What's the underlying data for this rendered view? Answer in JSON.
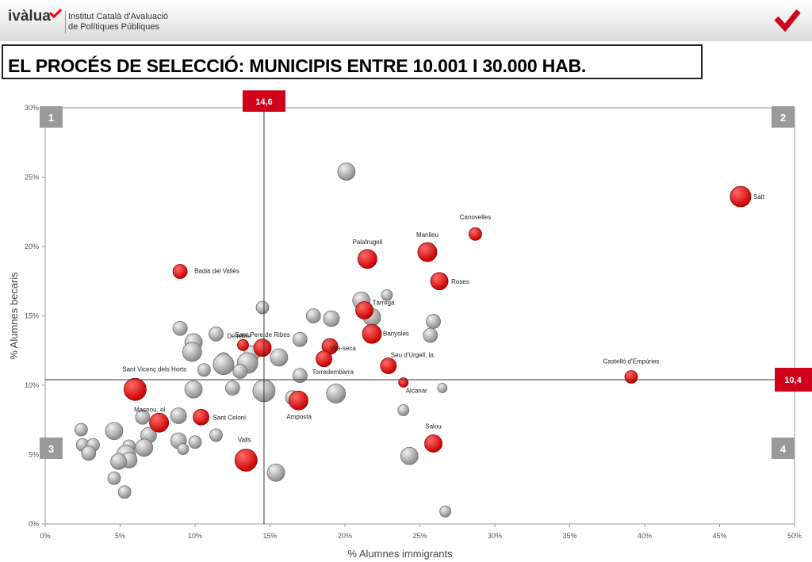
{
  "header": {
    "logo_word": "ivàlua",
    "org_line1": "Institut Català d'Avaluació",
    "org_line2": "de Polítiques Públiques"
  },
  "slide_title": "EL PROCÉS DE SELECCIÓ: MUNICIPIS ENTRE 10.001 I 30.000 HAB.",
  "colors": {
    "selected": "#e8000f",
    "other": "#a6a6a6",
    "accent": "#d0021b"
  },
  "chart_data": {
    "type": "scatter",
    "xlabel": "% Alumnes immigrants",
    "ylabel": "% Alumnes becaris",
    "xlim": [
      0,
      50
    ],
    "ylim": [
      0,
      30
    ],
    "xticks": [
      "0%",
      "5%",
      "10%",
      "15%",
      "20%",
      "25%",
      "30%",
      "35%",
      "40%",
      "45%",
      "50%"
    ],
    "yticks": [
      "0%",
      "5%",
      "10%",
      "15%",
      "20%",
      "25%",
      "30%"
    ],
    "reference_lines": {
      "x": 14.6,
      "y": 10.4,
      "x_label": "14,6",
      "y_label": "10,4"
    },
    "quadrants": [
      "1",
      "2",
      "3",
      "4"
    ],
    "selected": [
      {
        "label": "Salt",
        "x": 46.4,
        "y": 23.6,
        "size": 13
      },
      {
        "label": "Canovelles",
        "x": 28.7,
        "y": 20.9,
        "size": 8
      },
      {
        "label": "Manlleu",
        "x": 25.5,
        "y": 19.6,
        "size": 12
      },
      {
        "label": "Palafrugell",
        "x": 21.5,
        "y": 19.1,
        "size": 12
      },
      {
        "label": "Roses",
        "x": 26.3,
        "y": 17.5,
        "size": 11
      },
      {
        "label": "Badia del Vallès",
        "x": 9.0,
        "y": 18.2,
        "size": 9
      },
      {
        "label": "Tàrrega",
        "x": 21.3,
        "y": 15.4,
        "size": 11
      },
      {
        "label": "Banyoles",
        "x": 21.8,
        "y": 13.7,
        "size": 12
      },
      {
        "label": "Sant Pere de Ribes",
        "x": 14.5,
        "y": 12.7,
        "size": 11
      },
      {
        "label": "Deltebre",
        "x": 13.2,
        "y": 12.9,
        "size": 7
      },
      {
        "label": "Vila-seca",
        "x": 19.0,
        "y": 12.8,
        "size": 10
      },
      {
        "label": "Torredembarra",
        "x": 18.6,
        "y": 11.9,
        "size": 10
      },
      {
        "label": "Seu d'Urgell, la",
        "x": 22.9,
        "y": 11.4,
        "size": 10
      },
      {
        "label": "Castelló d'Empúries",
        "x": 39.1,
        "y": 10.6,
        "size": 8
      },
      {
        "label": "Alcanar",
        "x": 23.9,
        "y": 10.2,
        "size": 6
      },
      {
        "label": "Sant Vicenç dels Horts",
        "x": 6.0,
        "y": 9.7,
        "size": 14
      },
      {
        "label": "Amposta",
        "x": 16.9,
        "y": 8.9,
        "size": 12
      },
      {
        "label": "Sant Celoni",
        "x": 10.4,
        "y": 7.7,
        "size": 10
      },
      {
        "label": "Masnou, el",
        "x": 7.6,
        "y": 7.3,
        "size": 12
      },
      {
        "label": "Salou",
        "x": 25.9,
        "y": 5.8,
        "size": 11
      },
      {
        "label": "Valls",
        "x": 13.4,
        "y": 4.6,
        "size": 14
      }
    ],
    "others": [
      {
        "x": 20.1,
        "y": 25.4,
        "size": 11
      },
      {
        "x": 22.8,
        "y": 16.5,
        "size": 7
      },
      {
        "x": 14.5,
        "y": 15.6,
        "size": 8
      },
      {
        "x": 21.1,
        "y": 16.1,
        "size": 11
      },
      {
        "x": 17.9,
        "y": 15.0,
        "size": 9
      },
      {
        "x": 19.1,
        "y": 14.8,
        "size": 10
      },
      {
        "x": 21.8,
        "y": 14.9,
        "size": 11
      },
      {
        "x": 25.9,
        "y": 14.6,
        "size": 9
      },
      {
        "x": 25.7,
        "y": 13.6,
        "size": 9
      },
      {
        "x": 9.0,
        "y": 14.1,
        "size": 9
      },
      {
        "x": 11.4,
        "y": 13.7,
        "size": 9
      },
      {
        "x": 17.0,
        "y": 13.3,
        "size": 9
      },
      {
        "x": 9.9,
        "y": 13.1,
        "size": 11
      },
      {
        "x": 9.8,
        "y": 12.4,
        "size": 12
      },
      {
        "x": 11.9,
        "y": 11.9,
        "size": 8
      },
      {
        "x": 13.8,
        "y": 12.3,
        "size": 10
      },
      {
        "x": 15.6,
        "y": 12.0,
        "size": 11
      },
      {
        "x": 11.9,
        "y": 11.5,
        "size": 13
      },
      {
        "x": 13.5,
        "y": 11.6,
        "size": 13
      },
      {
        "x": 10.6,
        "y": 11.1,
        "size": 8
      },
      {
        "x": 13.0,
        "y": 11.0,
        "size": 9
      },
      {
        "x": 17.0,
        "y": 10.7,
        "size": 9
      },
      {
        "x": 9.9,
        "y": 9.7,
        "size": 11
      },
      {
        "x": 12.5,
        "y": 9.8,
        "size": 9
      },
      {
        "x": 14.6,
        "y": 9.6,
        "size": 14
      },
      {
        "x": 19.4,
        "y": 9.4,
        "size": 12
      },
      {
        "x": 16.5,
        "y": 9.1,
        "size": 9
      },
      {
        "x": 26.5,
        "y": 9.8,
        "size": 6
      },
      {
        "x": 23.9,
        "y": 8.2,
        "size": 7
      },
      {
        "x": 8.9,
        "y": 7.8,
        "size": 10
      },
      {
        "x": 6.5,
        "y": 7.7,
        "size": 9
      },
      {
        "x": 2.4,
        "y": 6.8,
        "size": 8
      },
      {
        "x": 4.6,
        "y": 6.7,
        "size": 11
      },
      {
        "x": 6.9,
        "y": 6.4,
        "size": 10
      },
      {
        "x": 11.4,
        "y": 6.4,
        "size": 8
      },
      {
        "x": 8.9,
        "y": 6.0,
        "size": 10
      },
      {
        "x": 10.0,
        "y": 5.9,
        "size": 8
      },
      {
        "x": 2.5,
        "y": 5.7,
        "size": 8
      },
      {
        "x": 3.2,
        "y": 5.7,
        "size": 8
      },
      {
        "x": 5.6,
        "y": 5.6,
        "size": 8
      },
      {
        "x": 6.6,
        "y": 5.5,
        "size": 11
      },
      {
        "x": 9.2,
        "y": 5.4,
        "size": 7
      },
      {
        "x": 2.9,
        "y": 5.1,
        "size": 9
      },
      {
        "x": 5.4,
        "y": 5.0,
        "size": 12
      },
      {
        "x": 5.6,
        "y": 4.6,
        "size": 10
      },
      {
        "x": 4.9,
        "y": 4.5,
        "size": 10
      },
      {
        "x": 24.3,
        "y": 4.9,
        "size": 11
      },
      {
        "x": 15.4,
        "y": 3.7,
        "size": 11
      },
      {
        "x": 4.6,
        "y": 3.3,
        "size": 8
      },
      {
        "x": 5.3,
        "y": 2.3,
        "size": 8
      },
      {
        "x": 26.7,
        "y": 0.9,
        "size": 7
      }
    ]
  }
}
